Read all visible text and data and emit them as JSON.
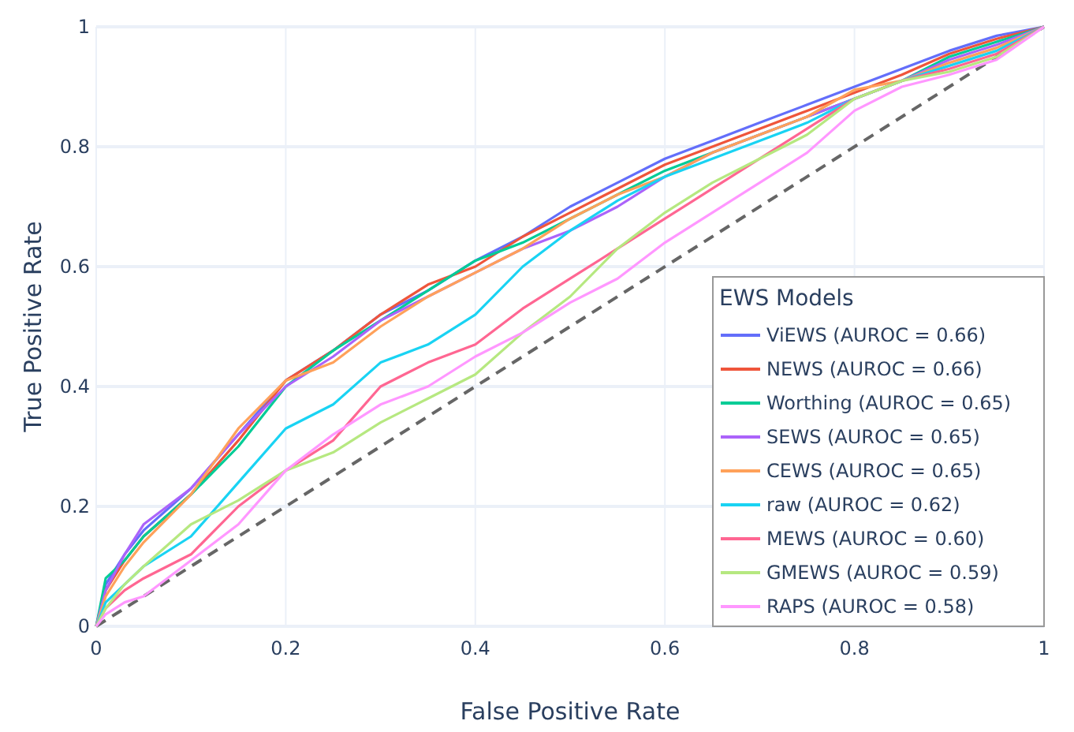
{
  "chart_data": {
    "type": "line",
    "xlabel": "False Positive Rate",
    "ylabel": "True Positive Rate",
    "legend_title": "EWS Models",
    "legend": "bottom right",
    "grid": true,
    "xlim": [
      0,
      1
    ],
    "ylim": [
      0,
      1
    ],
    "xticks": [
      0,
      0.2,
      0.4,
      0.6,
      0.8,
      1
    ],
    "yticks": [
      0,
      0.2,
      0.4,
      0.6,
      0.8,
      1
    ],
    "x": [
      0,
      0.01,
      0.03,
      0.05,
      0.1,
      0.15,
      0.2,
      0.25,
      0.3,
      0.35,
      0.4,
      0.45,
      0.5,
      0.55,
      0.6,
      0.65,
      0.7,
      0.75,
      0.8,
      0.85,
      0.9,
      0.95,
      1
    ],
    "series": [
      {
        "color": "#666666",
        "line_style": "dashed",
        "x": [
          0,
          1
        ],
        "values": [
          0,
          1
        ]
      },
      {
        "name": "ViEWS (AUROC = 0.66)",
        "color": "#636efa",
        "values": [
          0,
          0.07,
          0.12,
          0.16,
          0.23,
          0.32,
          0.41,
          0.46,
          0.52,
          0.56,
          0.61,
          0.65,
          0.7,
          0.74,
          0.78,
          0.81,
          0.84,
          0.87,
          0.9,
          0.93,
          0.96,
          0.985,
          1
        ]
      },
      {
        "name": "NEWS (AUROC = 0.66)",
        "color": "#ef553b",
        "values": [
          0,
          0.06,
          0.11,
          0.15,
          0.22,
          0.31,
          0.41,
          0.46,
          0.52,
          0.57,
          0.6,
          0.65,
          0.69,
          0.73,
          0.77,
          0.8,
          0.83,
          0.86,
          0.89,
          0.92,
          0.955,
          0.98,
          1
        ]
      },
      {
        "name": "Worthing (AUROC = 0.65)",
        "color": "#00cc96",
        "values": [
          0,
          0.08,
          0.11,
          0.15,
          0.22,
          0.3,
          0.4,
          0.46,
          0.51,
          0.56,
          0.61,
          0.64,
          0.68,
          0.72,
          0.76,
          0.79,
          0.82,
          0.85,
          0.88,
          0.91,
          0.95,
          0.975,
          1
        ]
      },
      {
        "name": "SEWS (AUROC = 0.65)",
        "color": "#ab63fa",
        "values": [
          0,
          0.06,
          0.12,
          0.17,
          0.23,
          0.32,
          0.4,
          0.45,
          0.51,
          0.55,
          0.59,
          0.63,
          0.66,
          0.7,
          0.75,
          0.79,
          0.82,
          0.85,
          0.88,
          0.91,
          0.945,
          0.97,
          1
        ]
      },
      {
        "name": "CEWS (AUROC = 0.65)",
        "color": "#ffa15a",
        "values": [
          0,
          0.05,
          0.1,
          0.14,
          0.22,
          0.33,
          0.41,
          0.44,
          0.5,
          0.55,
          0.59,
          0.63,
          0.68,
          0.72,
          0.75,
          0.79,
          0.82,
          0.85,
          0.895,
          0.91,
          0.94,
          0.965,
          1
        ]
      },
      {
        "name": "raw (AUROC = 0.62)",
        "color": "#19d3f3",
        "values": [
          0,
          0.04,
          0.07,
          0.1,
          0.15,
          0.24,
          0.33,
          0.37,
          0.44,
          0.47,
          0.52,
          0.6,
          0.66,
          0.71,
          0.75,
          0.78,
          0.81,
          0.84,
          0.88,
          0.91,
          0.935,
          0.96,
          1
        ]
      },
      {
        "name": "MEWS (AUROC = 0.60)",
        "color": "#ff6692",
        "values": [
          0,
          0.03,
          0.06,
          0.08,
          0.12,
          0.2,
          0.26,
          0.31,
          0.4,
          0.44,
          0.47,
          0.53,
          0.58,
          0.63,
          0.68,
          0.73,
          0.78,
          0.83,
          0.88,
          0.91,
          0.93,
          0.955,
          1
        ]
      },
      {
        "name": "GMEWS (AUROC = 0.59)",
        "color": "#b6e880",
        "values": [
          0,
          0.03,
          0.07,
          0.1,
          0.17,
          0.21,
          0.26,
          0.29,
          0.34,
          0.38,
          0.42,
          0.49,
          0.55,
          0.63,
          0.69,
          0.74,
          0.78,
          0.82,
          0.88,
          0.91,
          0.925,
          0.95,
          1
        ]
      },
      {
        "name": "RAPS (AUROC = 0.58)",
        "color": "#ff97ff",
        "values": [
          0,
          0.02,
          0.04,
          0.05,
          0.11,
          0.17,
          0.26,
          0.32,
          0.37,
          0.4,
          0.45,
          0.49,
          0.54,
          0.58,
          0.64,
          0.69,
          0.74,
          0.79,
          0.86,
          0.9,
          0.92,
          0.945,
          1
        ]
      }
    ]
  }
}
